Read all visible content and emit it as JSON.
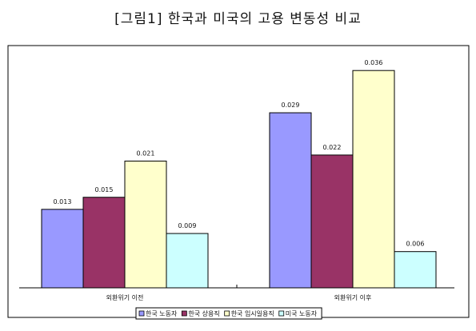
{
  "title": "[그림1] 한국과 미국의 고용 변동성 비교",
  "chart_data": {
    "type": "bar",
    "title": "[그림1] 한국과 미국의 고용 변동성 비교",
    "xlabel": "",
    "ylabel": "",
    "categories": [
      "외환위기 이전",
      "외환위기 이후"
    ],
    "series": [
      {
        "name": "한국 노동자",
        "values": [
          0.013,
          0.029
        ],
        "labels": [
          "0.013",
          "0.029"
        ],
        "color": "#9999ff"
      },
      {
        "name": "한국 상용직",
        "values": [
          0.015,
          0.022
        ],
        "labels": [
          "0.015",
          "0.022"
        ],
        "color": "#993366"
      },
      {
        "name": "한국 임시일용직",
        "values": [
          0.021,
          0.036
        ],
        "labels": [
          "0.021",
          "0.036"
        ],
        "color": "#ffffcc"
      },
      {
        "name": "미국 노동자",
        "values": [
          0.009,
          0.006
        ],
        "labels": [
          "0.009",
          "0.006"
        ],
        "color": "#ccffff"
      }
    ],
    "ylim": [
      0,
      0.04
    ],
    "grid": false,
    "legend": "bottom"
  }
}
